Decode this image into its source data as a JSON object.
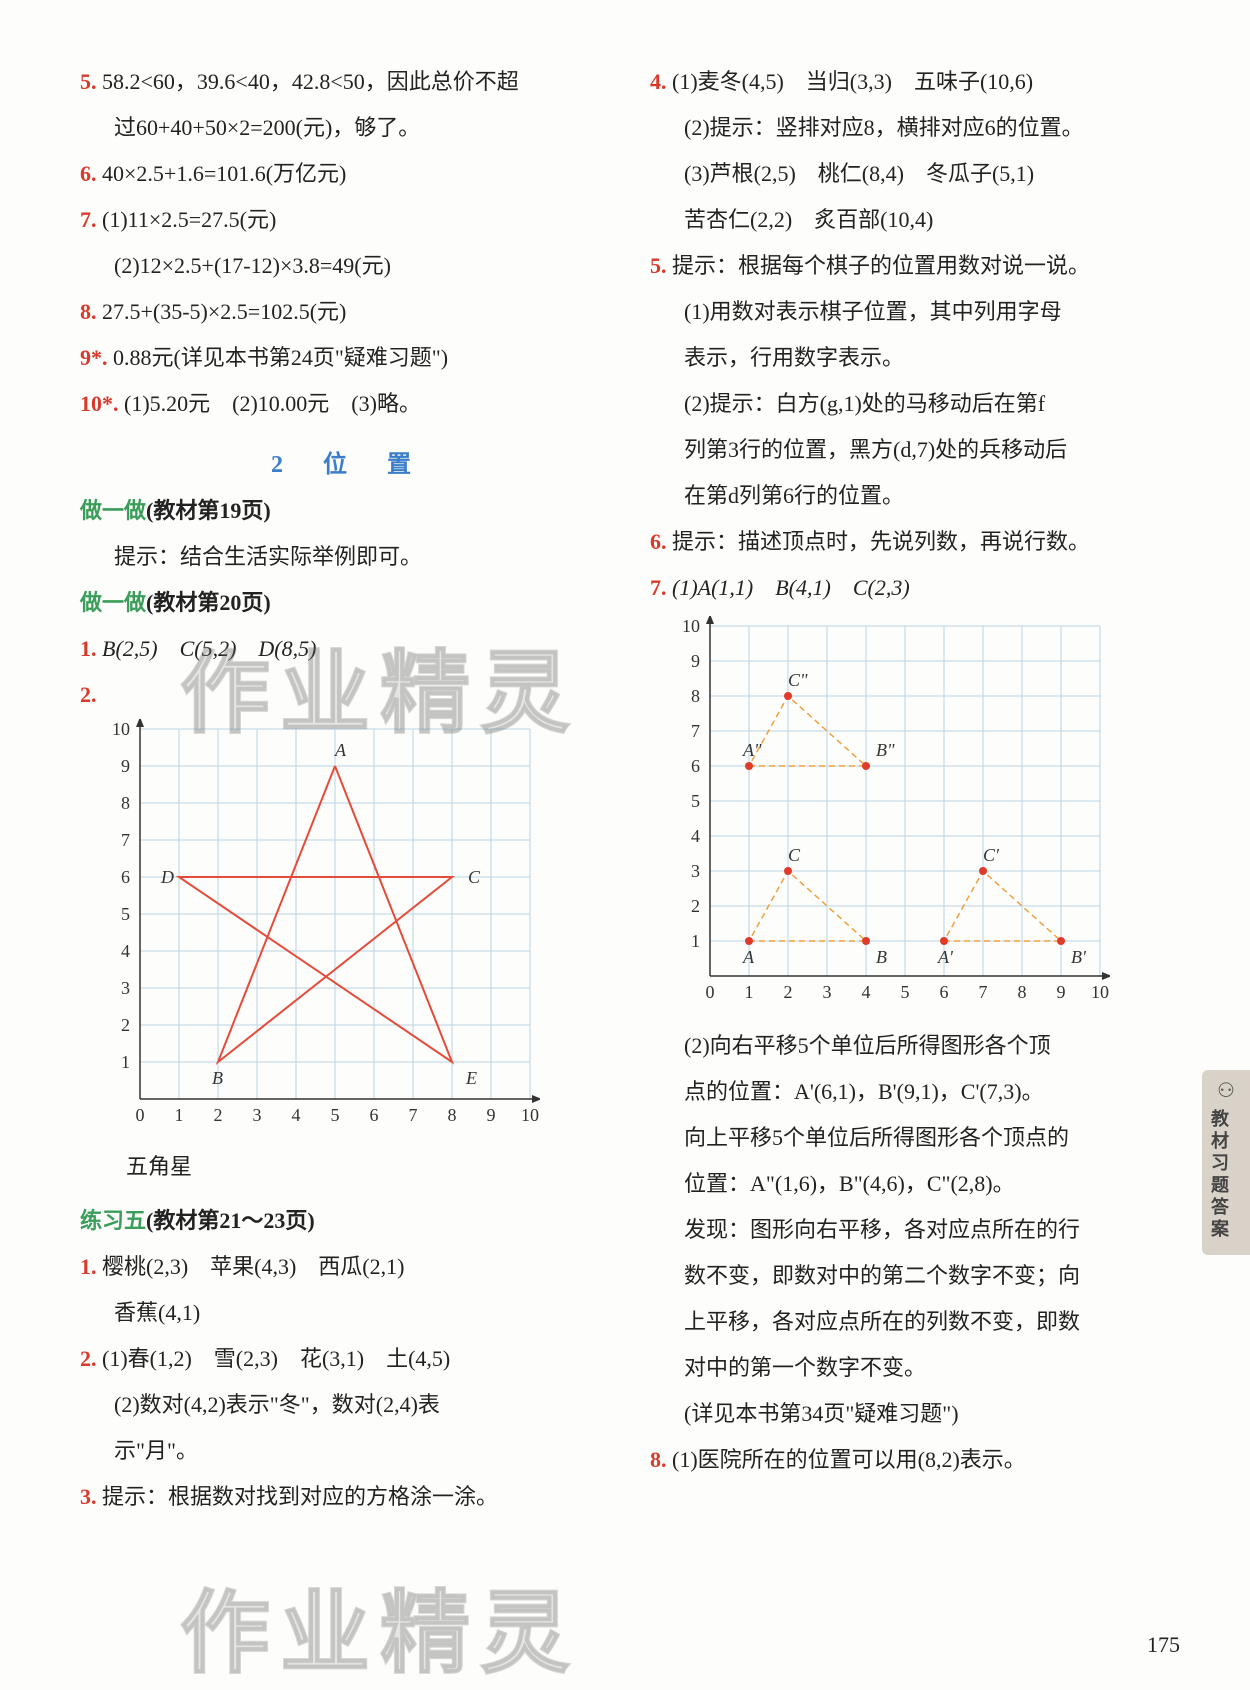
{
  "left": {
    "p5": {
      "num": "5.",
      "text": "58.2<60，39.6<40，42.8<50，因此总价不超"
    },
    "p5b": "过60+40+50×2=200(元)，够了。",
    "p6": {
      "num": "6.",
      "text": "40×2.5+1.6=101.6(万亿元)"
    },
    "p7a": {
      "num": "7.",
      "text": "(1)11×2.5=27.5(元)"
    },
    "p7b": "(2)12×2.5+(17-12)×3.8=49(元)",
    "p8": {
      "num": "8.",
      "text": "27.5+(35-5)×2.5=102.5(元)"
    },
    "p9": {
      "num": "9*.",
      "text": "0.88元(详见本书第24页\"疑难习题\")"
    },
    "p10": {
      "num": "10*.",
      "text": "(1)5.20元　(2)10.00元　(3)略。"
    },
    "section": "2　位　置",
    "zuo1": {
      "label": "做一做",
      "ref": "(教材第19页)"
    },
    "zuo1_text": "提示：结合生活实际举例即可。",
    "zuo2": {
      "label": "做一做",
      "ref": "(教材第20页)"
    },
    "q1": {
      "num": "1.",
      "text": "B(2,5)　C(5,2)　D(8,5)"
    },
    "q2": {
      "num": "2."
    },
    "chart1": {
      "type": "line",
      "xlim": [
        0,
        10
      ],
      "ylim": [
        0,
        10
      ],
      "xtick_step": 1,
      "ytick_step": 1,
      "grid_color": "#b9d4e6",
      "bg_color": "#ffffff",
      "axis_color": "#333333",
      "line_color": "#e54b3a",
      "line_width": 2,
      "label_fontsize": 18,
      "points": {
        "A": [
          5,
          9
        ],
        "B": [
          2,
          1
        ],
        "C": [
          8,
          6
        ],
        "D": [
          1,
          6
        ],
        "E": [
          8,
          1
        ]
      },
      "star_path": [
        "A",
        "E",
        "D",
        "C",
        "B",
        "A"
      ],
      "caption": "五角星"
    },
    "lx5": {
      "label": "练习五",
      "ref": "(教材第21～23页)"
    },
    "e1": {
      "num": "1.",
      "text": "樱桃(2,3)　苹果(4,3)　西瓜(2,1)"
    },
    "e1b": "香蕉(4,1)",
    "e2a": {
      "num": "2.",
      "text": "(1)春(1,2)　雪(2,3)　花(3,1)　土(4,5)"
    },
    "e2b": "(2)数对(4,2)表示\"冬\"，数对(2,4)表",
    "e2c": "示\"月\"。",
    "e3": {
      "num": "3.",
      "text": "提示：根据数对找到对应的方格涂一涂。"
    }
  },
  "right": {
    "p4a": {
      "num": "4.",
      "text": "(1)麦冬(4,5)　当归(3,3)　五味子(10,6)"
    },
    "p4b": "(2)提示：竖排对应8，横排对应6的位置。",
    "p4c": "(3)芦根(2,5)　桃仁(8,4)　冬瓜子(5,1)",
    "p4d": "苦杏仁(2,2)　炙百部(10,4)",
    "p5a": {
      "num": "5.",
      "text": "提示：根据每个棋子的位置用数对说一说。"
    },
    "p5b": "(1)用数对表示棋子位置，其中列用字母",
    "p5c": "表示，行用数字表示。",
    "p5d": "(2)提示：白方(g,1)处的马移动后在第f",
    "p5e": "列第3行的位置，黑方(d,7)处的兵移动后",
    "p5f": "在第d列第6行的位置。",
    "p6": {
      "num": "6.",
      "text": "提示：描述顶点时，先说列数，再说行数。"
    },
    "p7": {
      "num": "7.",
      "text": "(1)A(1,1)　B(4,1)　C(2,3)"
    },
    "chart2": {
      "type": "line",
      "xlim": [
        0,
        10
      ],
      "ylim": [
        0,
        10
      ],
      "xtick_step": 1,
      "ytick_step": 1,
      "grid_color": "#b9d4e6",
      "bg_color": "#ffffff",
      "axis_color": "#333333",
      "line_color": "#f0a040",
      "dot_color": "#e03a2a",
      "dot_radius": 4,
      "line_width": 1.5,
      "dash": "6,4",
      "label_fontsize": 18,
      "triangles": [
        {
          "pts": [
            [
              1,
              1
            ],
            [
              4,
              1
            ],
            [
              2,
              3
            ]
          ],
          "labels": [
            "A",
            "B",
            "C"
          ]
        },
        {
          "pts": [
            [
              6,
              1
            ],
            [
              9,
              1
            ],
            [
              7,
              3
            ]
          ],
          "labels": [
            "A'",
            "B'",
            "C'"
          ]
        },
        {
          "pts": [
            [
              1,
              6
            ],
            [
              4,
              6
            ],
            [
              2,
              8
            ]
          ],
          "labels": [
            "A\"",
            "B\"",
            "C\""
          ]
        }
      ]
    },
    "p7b": "(2)向右平移5个单位后所得图形各个顶",
    "p7c": "点的位置：A'(6,1)，B'(9,1)，C'(7,3)。",
    "p7d": "向上平移5个单位后所得图形各个顶点的",
    "p7e": "位置：A\"(1,6)，B\"(4,6)，C\"(2,8)。",
    "p7f": "发现：图形向右平移，各对应点所在的行",
    "p7g": "数不变，即数对中的第二个数字不变；向",
    "p7h": "上平移，各对应点所在的列数不变，即数",
    "p7i": "对中的第一个数字不变。",
    "p7j": "(详见本书第34页\"疑难习题\")",
    "p8": {
      "num": "8.",
      "text": "(1)医院所在的位置可以用(8,2)表示。"
    }
  },
  "page_number": "175",
  "side_tab": "教材习题答案",
  "watermark": "作业精灵"
}
